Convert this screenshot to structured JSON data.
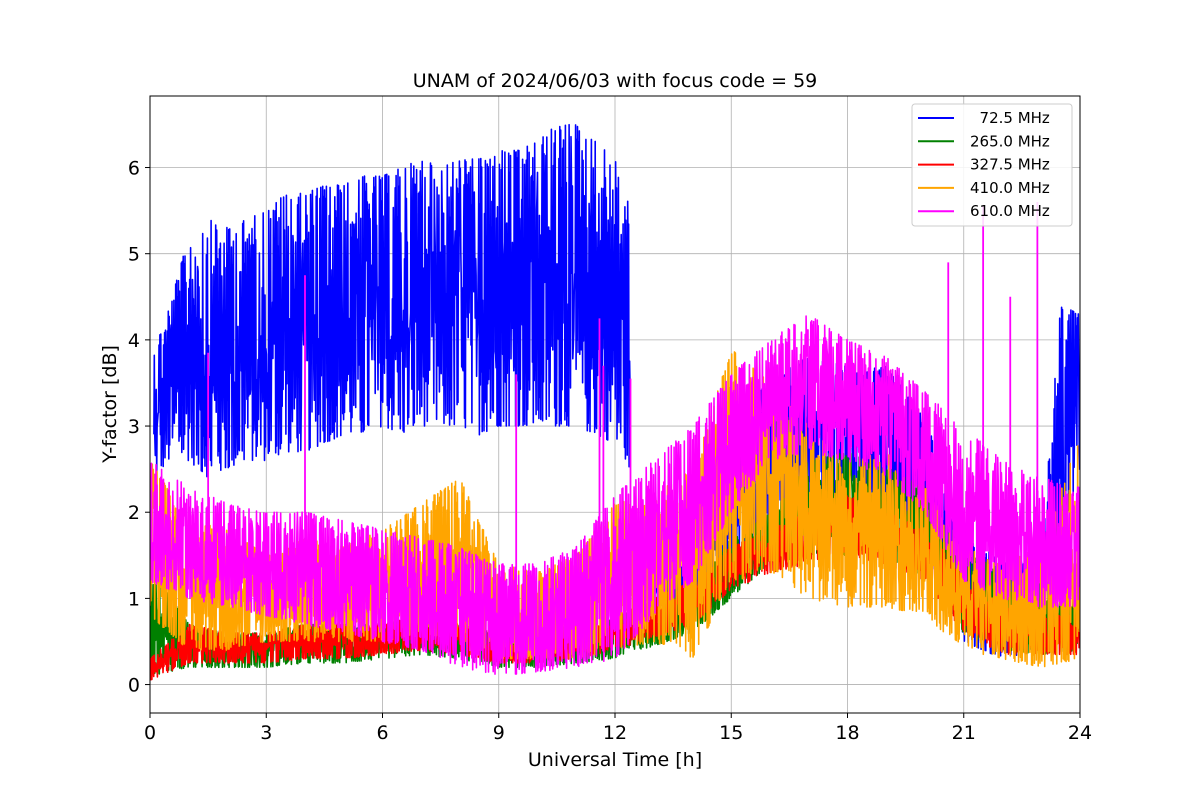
{
  "chart_data": {
    "type": "line",
    "title": "UNAM of 2024/06/03 with focus code = 59",
    "xlabel": "Universal Time [h]",
    "ylabel": "Y-factor [dB]",
    "xlim": [
      0,
      24
    ],
    "ylim": [
      -0.33,
      6.83
    ],
    "xticks": [
      0,
      3,
      6,
      9,
      12,
      15,
      18,
      21,
      24
    ],
    "yticks": [
      0,
      1,
      2,
      3,
      4,
      5,
      6
    ],
    "grid": true,
    "legend_position": "top-right",
    "series": [
      {
        "name": "  72.5 MHz",
        "color": "#0000ff",
        "segments": [
          {
            "x": [
              0.1,
              0.5,
              1.0,
              1.5,
              2.0,
              2.5,
              3.0,
              3.5,
              4.0,
              4.5,
              5.0,
              5.5,
              6.0,
              6.5,
              7.0,
              7.5,
              8.0,
              8.5,
              9.0,
              9.5,
              10.0,
              10.5,
              11.0,
              11.5,
              12.0,
              12.4
            ],
            "y_low": [
              2.4,
              2.6,
              2.6,
              2.4,
              2.5,
              2.6,
              2.6,
              2.7,
              2.7,
              2.8,
              2.9,
              2.9,
              3.0,
              2.9,
              3.0,
              3.0,
              3.0,
              2.9,
              3.0,
              3.0,
              3.0,
              3.0,
              3.0,
              2.9,
              2.8,
              2.5
            ],
            "y_high": [
              3.9,
              4.4,
              5.2,
              5.4,
              5.3,
              5.4,
              5.5,
              5.7,
              5.7,
              5.8,
              5.8,
              5.9,
              5.9,
              6.0,
              6.1,
              6.0,
              6.1,
              6.1,
              6.2,
              6.2,
              6.3,
              6.5,
              6.5,
              6.3,
              6.1,
              5.5
            ]
          },
          {
            "x": [
              13.0,
              14.0,
              15.0,
              16.0,
              17.0,
              18.0,
              19.0,
              20.0,
              21.0,
              22.0,
              23.0,
              23.5,
              24.0
            ],
            "y_low": [
              0.9,
              1.0,
              1.2,
              1.8,
              2.2,
              2.2,
              2.1,
              1.6,
              0.5,
              0.3,
              0.4,
              1.5,
              2.5
            ],
            "y_high": [
              1.6,
              1.8,
              2.8,
              3.6,
              3.8,
              3.7,
              3.7,
              3.1,
              1.8,
              1.4,
              1.5,
              4.4,
              4.3
            ]
          }
        ]
      },
      {
        "name": "265.0 MHz",
        "color": "#008000",
        "x": [
          0,
          1,
          2,
          3,
          4,
          5,
          6,
          7,
          8,
          9,
          10,
          11,
          12,
          13,
          14,
          15,
          16,
          17,
          18,
          19,
          20,
          21,
          22,
          23,
          24
        ],
        "y_low": [
          0.1,
          0.2,
          0.2,
          0.2,
          0.25,
          0.25,
          0.3,
          0.35,
          0.3,
          0.2,
          0.2,
          0.25,
          0.3,
          0.45,
          0.6,
          1.0,
          1.4,
          1.5,
          1.5,
          1.5,
          1.2,
          0.6,
          0.4,
          0.35,
          0.4
        ],
        "y_high": [
          1.4,
          0.7,
          0.6,
          0.6,
          0.7,
          0.7,
          0.7,
          0.8,
          0.7,
          0.6,
          0.6,
          0.7,
          0.8,
          0.9,
          1.1,
          1.7,
          2.0,
          2.6,
          2.7,
          2.5,
          2.3,
          1.6,
          1.3,
          1.0,
          1.0
        ]
      },
      {
        "name": "327.5 MHz",
        "color": "#ff0000",
        "x": [
          0,
          1,
          2,
          3,
          4,
          5,
          6,
          7,
          8,
          9,
          10,
          11,
          12,
          13,
          14,
          15,
          16,
          17,
          18,
          19,
          20,
          21,
          22,
          23,
          24
        ],
        "y_low": [
          0.05,
          0.25,
          0.25,
          0.25,
          0.3,
          0.3,
          0.35,
          0.4,
          0.35,
          0.25,
          0.25,
          0.3,
          0.4,
          0.55,
          0.7,
          1.1,
          1.3,
          1.4,
          1.5,
          1.4,
          1.2,
          0.6,
          0.35,
          0.35,
          0.35
        ],
        "y_high": [
          0.3,
          0.7,
          0.6,
          0.6,
          0.7,
          0.7,
          0.7,
          0.8,
          0.7,
          0.6,
          0.6,
          0.7,
          0.8,
          1.0,
          1.2,
          1.6,
          1.8,
          2.0,
          2.2,
          2.0,
          1.8,
          1.3,
          0.9,
          0.8,
          0.8
        ]
      },
      {
        "name": "410.0 MHz",
        "color": "#ffa500",
        "x": [
          0,
          1,
          2,
          3,
          4,
          5,
          6,
          7,
          8,
          9,
          10,
          11,
          12,
          13,
          14,
          15,
          16,
          17,
          18,
          19,
          20,
          21,
          22,
          23,
          24
        ],
        "y_low": [
          0.8,
          0.4,
          0.4,
          0.5,
          0.5,
          0.5,
          0.5,
          0.6,
          0.5,
          0.3,
          0.3,
          0.3,
          0.4,
          0.5,
          0.3,
          1.2,
          1.3,
          1.0,
          0.9,
          0.9,
          0.8,
          0.4,
          0.3,
          0.2,
          0.3
        ],
        "y_high": [
          2.6,
          1.9,
          1.8,
          1.5,
          1.7,
          1.6,
          1.8,
          2.1,
          2.4,
          1.4,
          1.3,
          1.5,
          2.1,
          2.2,
          2.5,
          3.9,
          3.5,
          3.0,
          2.6,
          2.7,
          2.3,
          1.6,
          1.4,
          1.6,
          2.9
        ]
      },
      {
        "name": "610.0 MHz",
        "color": "#ff00ff",
        "x": [
          0,
          1,
          2,
          3,
          4,
          5,
          6,
          7,
          8,
          9,
          10,
          11,
          12,
          13,
          14,
          15,
          16,
          17,
          18,
          19,
          20,
          21,
          22,
          23,
          24
        ],
        "y_low": [
          1.2,
          1.0,
          0.9,
          0.8,
          0.7,
          0.6,
          0.5,
          0.4,
          0.2,
          0.1,
          0.15,
          0.2,
          0.3,
          0.8,
          1.2,
          2.0,
          2.6,
          2.7,
          2.6,
          2.4,
          2.0,
          1.2,
          1.0,
          0.9,
          0.9
        ],
        "y_high": [
          2.6,
          2.3,
          2.1,
          2.0,
          2.0,
          1.9,
          1.8,
          1.7,
          1.6,
          1.4,
          1.4,
          1.6,
          2.2,
          2.6,
          3.0,
          3.6,
          4.0,
          4.3,
          4.0,
          3.8,
          3.4,
          3.0,
          2.6,
          2.4,
          2.3
        ],
        "spikes": [
          {
            "x": 1.5,
            "y": 3.85
          },
          {
            "x": 4.0,
            "y": 4.75
          },
          {
            "x": 9.45,
            "y": 3.6
          },
          {
            "x": 11.6,
            "y": 4.25
          },
          {
            "x": 11.7,
            "y": 3.7
          },
          {
            "x": 12.4,
            "y": 3.55
          },
          {
            "x": 20.6,
            "y": 4.9
          },
          {
            "x": 21.5,
            "y": 5.55
          },
          {
            "x": 22.2,
            "y": 4.5
          },
          {
            "x": 22.9,
            "y": 5.6
          }
        ]
      }
    ],
    "legend": [
      "  72.5 MHz",
      "265.0 MHz",
      "327.5 MHz",
      "410.0 MHz",
      "610.0 MHz"
    ]
  }
}
